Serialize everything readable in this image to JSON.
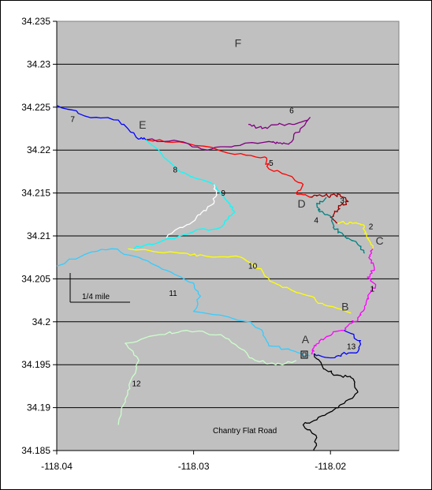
{
  "chart_data": {
    "type": "line",
    "title": "",
    "xlabel": "",
    "ylabel": "",
    "xlim": [
      -118.04,
      -118.015
    ],
    "ylim": [
      34.185,
      34.235
    ],
    "x_ticks": [
      -118.04,
      -118.03,
      -118.02
    ],
    "x_tick_labels": [
      "-118.04",
      "-118.03",
      "-118.02"
    ],
    "y_ticks": [
      34.185,
      34.19,
      34.195,
      34.2,
      34.205,
      34.21,
      34.215,
      34.22,
      34.225,
      34.23,
      34.235
    ],
    "y_tick_labels": [
      "34.185",
      "34.19",
      "34.195",
      "34.2",
      "34.205",
      "34.21",
      "34.215",
      "34.22",
      "34.225",
      "34.23",
      "34.235"
    ],
    "grid": "horizontal",
    "plot_background": "#c0c0c0",
    "series": [
      {
        "id": "1",
        "color": "#ff00ff",
        "points": [
          [
            -118.0169,
            34.2085
          ],
          [
            -118.0172,
            34.2075
          ],
          [
            -118.0168,
            34.2063
          ],
          [
            -118.0173,
            34.2052
          ],
          [
            -118.0167,
            34.2042
          ],
          [
            -118.0172,
            34.2032
          ],
          [
            -118.0174,
            34.202
          ],
          [
            -118.0178,
            34.201
          ],
          [
            -118.018,
            34.2003
          ],
          [
            -118.0185,
            34.1998
          ],
          [
            -118.0192,
            34.199
          ],
          [
            -118.0202,
            34.1983
          ],
          [
            -118.0208,
            34.1978
          ],
          [
            -118.0212,
            34.197
          ],
          [
            -118.0213,
            34.1963
          ]
        ]
      },
      {
        "id": "2",
        "color": "#ffff00",
        "points": [
          [
            -118.0195,
            34.2115
          ],
          [
            -118.0185,
            34.2116
          ],
          [
            -118.0176,
            34.2113
          ],
          [
            -118.0175,
            34.2103
          ],
          [
            -118.0172,
            34.2095
          ],
          [
            -118.0169,
            34.2085
          ]
        ]
      },
      {
        "id": "3",
        "color": "#990000",
        "points": [
          [
            -118.0215,
            34.2145
          ],
          [
            -118.0208,
            34.2148
          ],
          [
            -118.02,
            34.2146
          ],
          [
            -118.0193,
            34.2148
          ],
          [
            -118.0187,
            34.214
          ],
          [
            -118.0193,
            34.2135
          ],
          [
            -118.0195,
            34.2128
          ],
          [
            -118.02,
            34.2122
          ],
          [
            -118.0195,
            34.2115
          ]
        ]
      },
      {
        "id": "4",
        "color": "#008080",
        "points": [
          [
            -118.0203,
            34.2145
          ],
          [
            -118.021,
            34.2138
          ],
          [
            -118.0208,
            34.2128
          ],
          [
            -118.02,
            34.2123
          ],
          [
            -118.0198,
            34.211
          ],
          [
            -118.019,
            34.21
          ],
          [
            -118.018,
            34.209
          ],
          [
            -118.0175,
            34.208
          ]
        ]
      },
      {
        "id": "5",
        "color": "#ff0000",
        "points": [
          [
            -118.0335,
            34.2212
          ],
          [
            -118.0305,
            34.2208
          ],
          [
            -118.027,
            34.2195
          ],
          [
            -118.0248,
            34.2192
          ],
          [
            -118.0245,
            34.2178
          ],
          [
            -118.023,
            34.217
          ],
          [
            -118.022,
            34.216
          ],
          [
            -118.0225,
            34.215
          ],
          [
            -118.0215,
            34.2145
          ]
        ]
      },
      {
        "id": "6",
        "color": "#800080",
        "points": [
          [
            -118.026,
            34.223
          ],
          [
            -118.025,
            34.2225
          ],
          [
            -118.0238,
            34.223
          ],
          [
            -118.0228,
            34.223
          ],
          [
            -118.0215,
            34.2238
          ],
          [
            -118.0222,
            34.2225
          ],
          [
            -118.023,
            34.2208
          ],
          [
            -118.0238,
            34.2208
          ],
          [
            -118.0245,
            34.221
          ],
          [
            -118.027,
            34.2205
          ],
          [
            -118.029,
            34.22
          ],
          [
            -118.031,
            34.221
          ],
          [
            -118.0335,
            34.2212
          ]
        ]
      },
      {
        "id": "7",
        "color": "#0000ff",
        "points": [
          [
            -118.04,
            34.2252
          ],
          [
            -118.038,
            34.224
          ],
          [
            -118.0355,
            34.2235
          ],
          [
            -118.0342,
            34.2215
          ],
          [
            -118.0335,
            34.2212
          ]
        ]
      },
      {
        "id": "8",
        "color": "#00ffff",
        "points": [
          [
            -118.0335,
            34.2212
          ],
          [
            -118.031,
            34.2175
          ],
          [
            -118.0285,
            34.216
          ],
          [
            -118.0275,
            34.214
          ],
          [
            -118.027,
            34.2128
          ],
          [
            -118.028,
            34.211
          ],
          [
            -118.03,
            34.2105
          ],
          [
            -118.033,
            34.209
          ],
          [
            -118.0348,
            34.2085
          ]
        ]
      },
      {
        "id": "9",
        "color": "#ffffff",
        "points": [
          [
            -118.0285,
            34.216
          ],
          [
            -118.0283,
            34.2148
          ],
          [
            -118.0287,
            34.2136
          ],
          [
            -118.0295,
            34.2125
          ],
          [
            -118.0305,
            34.2113
          ],
          [
            -118.032,
            34.2098
          ]
        ]
      },
      {
        "id": "10",
        "color": "#ffff00",
        "points": [
          [
            -118.0348,
            34.2085
          ],
          [
            -118.031,
            34.208
          ],
          [
            -118.0295,
            34.2078
          ],
          [
            -118.0265,
            34.2075
          ],
          [
            -118.0255,
            34.2065
          ],
          [
            -118.0245,
            34.205
          ],
          [
            -118.0235,
            34.204
          ],
          [
            -118.0215,
            34.203
          ],
          [
            -118.0205,
            34.202
          ],
          [
            -118.0185,
            34.201
          ]
        ]
      },
      {
        "id": "11",
        "color": "#33ccff",
        "points": [
          [
            -118.04,
            34.2065
          ],
          [
            -118.038,
            34.2078
          ],
          [
            -118.036,
            34.2085
          ],
          [
            -118.034,
            34.2075
          ],
          [
            -118.032,
            34.206
          ],
          [
            -118.03,
            34.2045
          ],
          [
            -118.0295,
            34.203
          ],
          [
            -118.03,
            34.2012
          ],
          [
            -118.026,
            34.2
          ],
          [
            -118.025,
            34.199
          ],
          [
            -118.0245,
            34.1972
          ],
          [
            -118.0225,
            34.1965
          ],
          [
            -118.0215,
            34.196
          ]
        ]
      },
      {
        "id": "12",
        "color": "#ccffcc",
        "points": [
          [
            -118.0355,
            34.188
          ],
          [
            -118.035,
            34.191
          ],
          [
            -118.0345,
            34.1935
          ],
          [
            -118.034,
            34.1955
          ],
          [
            -118.035,
            34.1975
          ],
          [
            -118.0325,
            34.1985
          ],
          [
            -118.0305,
            34.199
          ],
          [
            -118.028,
            34.1985
          ],
          [
            -118.0265,
            34.1968
          ],
          [
            -118.0255,
            34.1955
          ],
          [
            -118.024,
            34.195
          ],
          [
            -118.0225,
            34.1955
          ]
        ]
      },
      {
        "id": "13",
        "color": "#0000ff",
        "points": [
          [
            -118.019,
            34.199
          ],
          [
            -118.0178,
            34.1978
          ],
          [
            -118.018,
            34.1965
          ],
          [
            -118.0192,
            34.1962
          ],
          [
            -118.02,
            34.1958
          ],
          [
            -118.0212,
            34.1963
          ]
        ]
      },
      {
        "id": "Chantry Flat Road",
        "color": "#000000",
        "points": [
          [
            -118.0212,
            34.1963
          ],
          [
            -118.0205,
            34.1945
          ],
          [
            -118.0195,
            34.1938
          ],
          [
            -118.0185,
            34.1935
          ],
          [
            -118.018,
            34.1918
          ],
          [
            -118.019,
            34.1905
          ],
          [
            -118.02,
            34.1895
          ],
          [
            -118.0212,
            34.1885
          ],
          [
            -118.022,
            34.188
          ],
          [
            -118.021,
            34.1865
          ],
          [
            -118.0212,
            34.185
          ]
        ]
      }
    ],
    "series_labels": [
      {
        "text": "1",
        "x": -118.0171,
        "y": 34.2035
      },
      {
        "text": "2",
        "x": -118.0172,
        "y": 34.2108
      },
      {
        "text": "3",
        "x": -118.0193,
        "y": 34.2138
      },
      {
        "text": "4",
        "x": -118.0212,
        "y": 34.2115
      },
      {
        "text": "5",
        "x": -118.0245,
        "y": 34.2182
      },
      {
        "text": "6",
        "x": -118.023,
        "y": 34.2243
      },
      {
        "text": "7",
        "x": -118.039,
        "y": 34.2233
      },
      {
        "text": "8",
        "x": -118.0315,
        "y": 34.2174
      },
      {
        "text": "9",
        "x": -118.028,
        "y": 34.2147
      },
      {
        "text": "10",
        "x": -118.026,
        "y": 34.2062
      },
      {
        "text": "11",
        "x": -118.0318,
        "y": 34.203
      },
      {
        "text": "12",
        "x": -118.0345,
        "y": 34.1925
      },
      {
        "text": "13",
        "x": -118.0188,
        "y": 34.1968
      }
    ],
    "point_labels": [
      {
        "text": "A",
        "x": -118.0221,
        "y": 34.1975
      },
      {
        "text": "B",
        "x": -118.0192,
        "y": 34.2013
      },
      {
        "text": "C",
        "x": -118.0167,
        "y": 34.209
      },
      {
        "text": "D",
        "x": -118.0224,
        "y": 34.2133
      },
      {
        "text": "E",
        "x": -118.034,
        "y": 34.2225
      },
      {
        "text": "F",
        "x": -118.027,
        "y": 34.232
      }
    ],
    "annotations": {
      "scale_bar_label": "1/4 mile",
      "road_label": "Chantry Flat Road"
    }
  }
}
